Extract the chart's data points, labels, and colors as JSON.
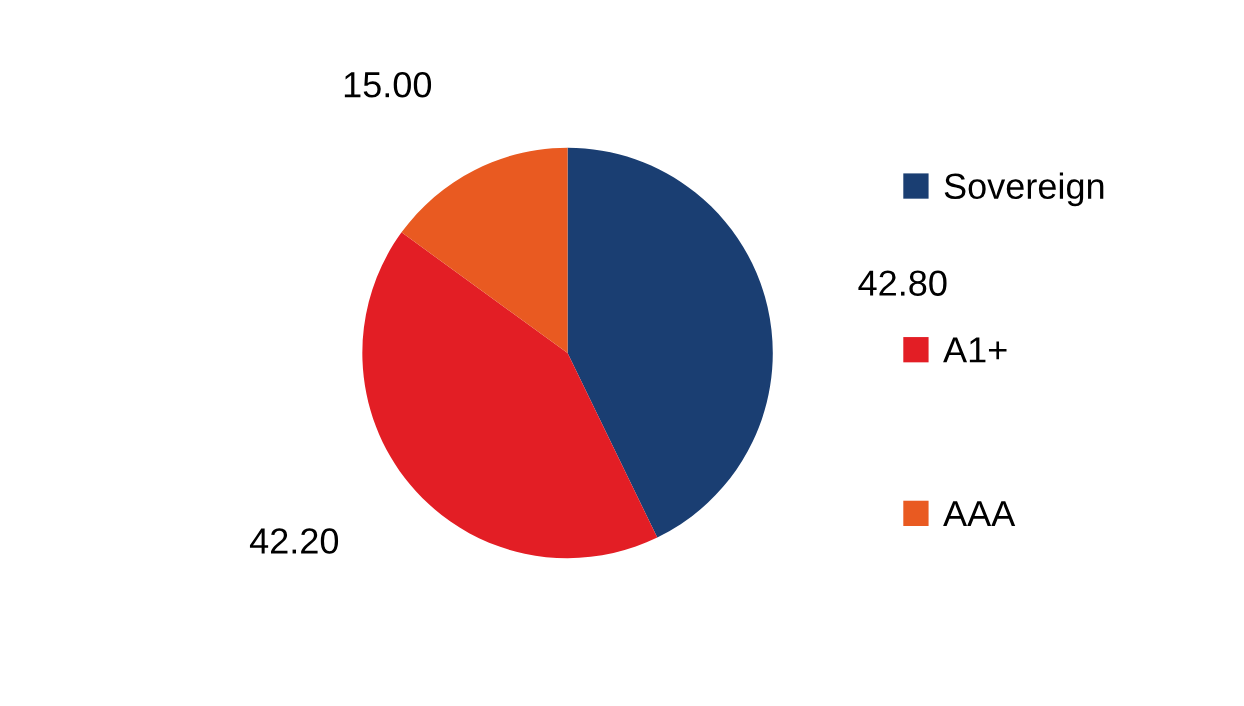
{
  "chart_data": {
    "type": "pie",
    "categories": [
      "Sovereign",
      "A1+",
      "AAA"
    ],
    "values": [
      42.8,
      42.2,
      15.0
    ],
    "value_labels": [
      "42.80",
      "42.20",
      "15.00"
    ],
    "colors": [
      "#1a3e72",
      "#e31e25",
      "#e95a21"
    ],
    "legend": "right"
  }
}
